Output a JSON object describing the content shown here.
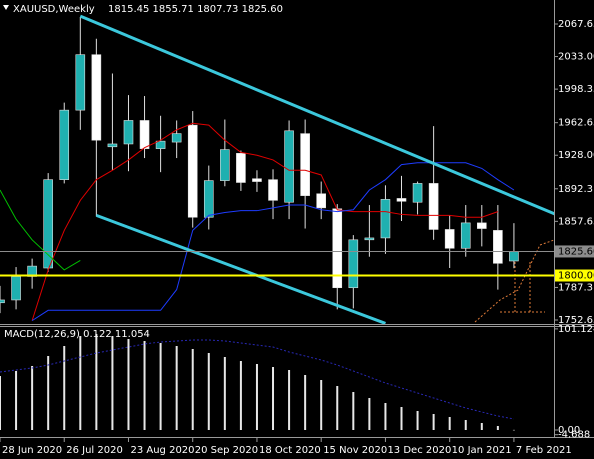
{
  "chart_data": [
    {
      "type": "candlestick",
      "title": "XAUUSD,Weekly",
      "subtitle": "1815.45 1855.71 1807.73 1825.60",
      "categories": [
        "28 Jun 2020",
        null,
        null,
        null,
        "26 Jul 2020",
        null,
        null,
        null,
        "23 Aug 2020",
        null,
        null,
        null,
        "20 Sep 2020",
        null,
        null,
        null,
        "18 Oct 2020",
        null,
        null,
        null,
        "15 Nov 2020",
        null,
        null,
        null,
        "13 Dec 2020",
        null,
        null,
        null,
        "10 Jan 2021",
        null,
        null,
        null,
        "7 Feb 2021"
      ],
      "open": [
        1771,
        1774,
        1799,
        1808,
        1902,
        1976,
        2035,
        1937,
        1940,
        1965,
        1935,
        1942,
        1960,
        1862,
        1901,
        1930,
        1903,
        1902,
        1878,
        1951,
        1887,
        1871,
        1787,
        1838,
        1840,
        1882,
        1878,
        1898,
        1849,
        1829,
        1856,
        1848,
        1815.45
      ],
      "high": [
        1789,
        1809,
        1818,
        1909,
        1984,
        2075,
        2052,
        2015,
        1992,
        1991,
        1970,
        1965,
        1975,
        1917,
        1966,
        1933,
        1912,
        1913,
        1965,
        1966,
        1900,
        1876,
        1843,
        1875,
        1896,
        1906,
        1900,
        1959,
        1864,
        1875,
        1875,
        1875,
        1855.71
      ],
      "low": [
        1760,
        1764,
        1786,
        1804,
        1898,
        1955,
        1863,
        1912,
        1911,
        1925,
        1910,
        1925,
        1851,
        1849,
        1895,
        1890,
        1889,
        1860,
        1860,
        1850,
        1860,
        1764,
        1765,
        1820,
        1823,
        1858,
        1865,
        1838,
        1808,
        1820,
        1831,
        1785,
        1807.73
      ],
      "close": [
        1774,
        1799,
        1810,
        1902,
        1976,
        2035,
        1944,
        1940,
        1965,
        1935,
        1943,
        1951,
        1862,
        1901,
        1934,
        1899,
        1900,
        1880,
        1954,
        1885,
        1872,
        1787,
        1838,
        1840,
        1881,
        1879,
        1898,
        1849,
        1829,
        1856,
        1850,
        1813,
        1825.6
      ],
      "bull_color": "#1fb0b0",
      "bear_color": "#ffffff",
      "wick_color": "#e0e0e0",
      "ylim": [
        1748.4,
        2093.2
      ],
      "yticks": [
        2067.65,
        {
          "value": 2033,
          "label": "2033.00"
        },
        1998.35,
        1962.65,
        {
          "value": 1928,
          "label": "1928.00"
        },
        1892.3,
        1857.65,
        1787.3,
        1752.65
      ],
      "lines": [
        {
          "color": "#e00000",
          "values": [
            null,
            null,
            1752,
            1806,
            1848,
            1880,
            1902,
            1912,
            1923,
            1936,
            1944,
            1955,
            1962,
            1960,
            1944,
            1931,
            1928,
            1923,
            1912,
            1912,
            1907,
            1870,
            1868,
            1868,
            1868,
            1865,
            1864,
            1864,
            1864,
            1862,
            1862,
            1868,
            null
          ]
        },
        {
          "color": "#1e3cff",
          "values": [
            null,
            null,
            1752,
            1763,
            1763,
            1763,
            1763,
            1763,
            1763,
            1763,
            1763,
            1785,
            1848,
            1864,
            1867,
            1869,
            1869,
            1872,
            1875,
            1875,
            1870,
            1868,
            1870,
            1891,
            1902,
            1918,
            1920,
            1920,
            1920,
            1920,
            1914,
            1902,
            1891
          ]
        },
        {
          "color": "#00c000",
          "values": [
            1891,
            1860,
            1838,
            1822,
            1806,
            1816,
            null,
            null,
            null,
            null,
            null,
            null,
            null,
            null,
            null,
            null,
            null,
            null,
            null,
            null,
            null,
            null,
            null,
            null,
            null,
            null,
            null,
            null,
            null,
            null,
            null,
            null,
            null
          ]
        }
      ],
      "levels": [
        {
          "value": 1825.6,
          "label": "1825.60",
          "color": "#8c8c8c"
        },
        {
          "value": 1800,
          "label": "1800.00",
          "color": "#ffff00"
        }
      ],
      "trendlines": [
        {
          "color": "#3cc8dc",
          "x": [
            5,
            37
          ],
          "y": [
            2076,
            1848
          ]
        },
        {
          "color": "#3cc8dc",
          "x": [
            6,
            24
          ],
          "y": [
            1864,
            1749
          ]
        }
      ]
    },
    {
      "type": "bar",
      "title": "MACD(12,26,9) 0.122 11.054",
      "values": [
        54,
        59,
        64,
        74,
        84,
        94,
        96,
        94,
        91,
        89,
        87,
        84,
        81,
        77,
        73,
        69,
        66,
        63,
        60,
        55,
        50,
        44,
        38,
        32,
        27,
        23,
        19,
        16,
        13,
        10,
        7,
        4,
        0.122
      ],
      "color": "#e8e8e8",
      "signal": {
        "color": "#2828b4",
        "values": [
          58,
          60,
          62,
          65,
          69,
          73,
          77,
          80,
          83,
          86,
          88,
          89,
          90,
          90,
          89,
          87,
          85,
          83,
          78,
          74,
          70,
          65,
          59,
          53,
          47,
          42,
          37,
          32,
          27,
          22,
          18,
          14,
          11.054
        ]
      },
      "ylim": [
        -6,
        104
      ],
      "yticks": [
        101.124,
        {
          "value": 0,
          "label": "0.00"
        },
        -4.688
      ]
    }
  ]
}
